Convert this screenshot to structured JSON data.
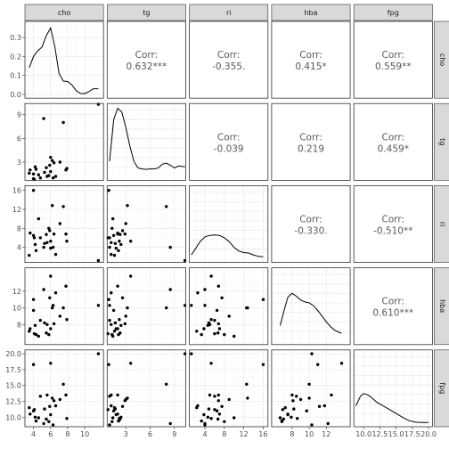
{
  "chart_data": {
    "type": "scatter-matrix",
    "variables": [
      "cho",
      "tg",
      "ri",
      "hba",
      "fpg"
    ],
    "grid": true,
    "axes": {
      "cho": {
        "range": [
          3,
          12.2
        ],
        "ticks": [
          4,
          6,
          8,
          10
        ],
        "tick_labels": [
          "4",
          "6",
          "8",
          "10"
        ]
      },
      "tg": {
        "range": [
          0.7,
          10.4
        ],
        "ticks": [
          3,
          6,
          9
        ],
        "tick_labels": [
          "3",
          "6",
          "9"
        ]
      },
      "ri": {
        "range": [
          0.8,
          17
        ],
        "ticks": [
          4,
          8,
          12,
          16
        ],
        "tick_labels": [
          "4",
          "8",
          "12",
          "16"
        ]
      },
      "hba": {
        "range": [
          5.6,
          14.8
        ],
        "ticks": [
          8,
          10,
          12
        ],
        "tick_labels": [
          "8",
          "10",
          "12"
        ]
      },
      "fpg": {
        "range": [
          8.5,
          20.6
        ],
        "ticks": [
          10,
          12.5,
          15,
          17.5,
          20
        ],
        "tick_labels": [
          "10.0",
          "12.5",
          "15.0",
          "17.5",
          "20.0"
        ]
      }
    },
    "density_axis": {
      "range": [
        -0.02,
        0.385
      ],
      "ticks": [
        0,
        0.1,
        0.2,
        0.3
      ],
      "tick_labels": [
        "0.0",
        "0.1",
        "0.2",
        "0.3"
      ]
    },
    "correlations": [
      {
        "pair": [
          "cho",
          "tg"
        ],
        "label": "Corr:",
        "value": "0.632***"
      },
      {
        "pair": [
          "cho",
          "ri"
        ],
        "label": "Corr:",
        "value": "-0.355."
      },
      {
        "pair": [
          "cho",
          "hba"
        ],
        "label": "Corr:",
        "value": "0.415*"
      },
      {
        "pair": [
          "cho",
          "fpg"
        ],
        "label": "Corr:",
        "value": "0.559**"
      },
      {
        "pair": [
          "tg",
          "ri"
        ],
        "label": "Corr:",
        "value": "-0.039"
      },
      {
        "pair": [
          "tg",
          "hba"
        ],
        "label": "Corr:",
        "value": "0.219"
      },
      {
        "pair": [
          "tg",
          "fpg"
        ],
        "label": "Corr:",
        "value": "0.459*"
      },
      {
        "pair": [
          "ri",
          "hba"
        ],
        "label": "Corr:",
        "value": "-0.330."
      },
      {
        "pair": [
          "ri",
          "fpg"
        ],
        "label": "Corr:",
        "value": "-0.510**"
      },
      {
        "pair": [
          "hba",
          "fpg"
        ],
        "label": "Corr:",
        "value": "0.610***"
      }
    ],
    "observations": [
      {
        "cho": 11.6,
        "tg": 10.3,
        "ri": 1.2,
        "hba": 10.3,
        "fpg": 20.0
      },
      {
        "cho": 4.0,
        "tg": 0.9,
        "ri": 16.0,
        "hba": 11.0,
        "fpg": 18.3
      },
      {
        "cho": 5.2,
        "tg": 8.5,
        "ri": 4.0,
        "hba": 12.2,
        "fpg": 9.0
      },
      {
        "cho": 6.0,
        "tg": 3.6,
        "ri": 5.3,
        "hba": 13.8,
        "fpg": 18.5
      },
      {
        "cho": 7.5,
        "tg": 8.0,
        "ri": 12.6,
        "hba": 10.0,
        "fpg": 15.2
      },
      {
        "cho": 5.6,
        "tg": 1.2,
        "ri": 5.0,
        "hba": 8.0,
        "fpg": 13.5
      },
      {
        "cho": 7.1,
        "tg": 3.0,
        "ri": 9.0,
        "hba": 9.0,
        "fpg": 12.8
      },
      {
        "cho": 3.6,
        "tg": 2.0,
        "ri": 7.0,
        "hba": 7.5,
        "fpg": 10.5
      },
      {
        "cho": 6.2,
        "tg": 3.2,
        "ri": 12.8,
        "hba": 10.0,
        "fpg": 13.0
      },
      {
        "cho": 4.0,
        "tg": 1.5,
        "ri": 6.5,
        "hba": 9.7,
        "fpg": 11.0
      },
      {
        "cho": 4.2,
        "tg": 2.4,
        "ri": 4.6,
        "hba": 7.9,
        "fpg": 10.0
      },
      {
        "cho": 5.5,
        "tg": 2.3,
        "ri": 6.7,
        "hba": 7.0,
        "fpg": 9.7
      },
      {
        "cho": 5.8,
        "tg": 1.3,
        "ri": 8.0,
        "hba": 6.8,
        "fpg": 9.3
      },
      {
        "cho": 6.0,
        "tg": 1.8,
        "ri": 3.8,
        "hba": 7.5,
        "fpg": 10.4
      },
      {
        "cho": 4.8,
        "tg": 1.0,
        "ri": 6.0,
        "hba": 8.5,
        "fpg": 13.3
      },
      {
        "cho": 5.3,
        "tg": 1.7,
        "ri": 4.8,
        "hba": 8.2,
        "fpg": 11.3
      },
      {
        "cho": 6.6,
        "tg": 1.2,
        "ri": 2.5,
        "hba": 11.8,
        "fpg": 11.8
      },
      {
        "cho": 4.3,
        "tg": 2.1,
        "ri": 3.3,
        "hba": 6.8,
        "fpg": 9.4
      },
      {
        "cho": 5.9,
        "tg": 2.6,
        "ri": 7.5,
        "hba": 11.2,
        "fpg": 11.7
      },
      {
        "cho": 7.9,
        "tg": 2.2,
        "ri": 5.3,
        "hba": 8.6,
        "fpg": 9.8
      },
      {
        "cho": 3.5,
        "tg": 1.6,
        "ri": 2.3,
        "hba": 7.2,
        "fpg": 11.5
      },
      {
        "cho": 6.3,
        "tg": 1.0,
        "ri": 4.0,
        "hba": 10.3,
        "fpg": 8.8
      },
      {
        "cho": 4.6,
        "tg": 1.4,
        "ri": 10.0,
        "hba": 6.6,
        "fpg": 9.9
      },
      {
        "cho": 6.4,
        "tg": 2.9,
        "ri": 6.8,
        "hba": 8.1,
        "fpg": 12.6
      },
      {
        "cho": 4.1,
        "tg": 0.8,
        "ri": 6.0,
        "hba": 6.9,
        "fpg": 11.2
      },
      {
        "cho": 7.8,
        "tg": 2.0,
        "ri": 6.8,
        "hba": 12.6,
        "fpg": 13.5
      }
    ],
    "densities": {
      "cho": {
        "x": [
          3.5,
          4.0,
          4.5,
          5.0,
          5.5,
          6.0,
          6.5,
          7.0,
          7.5,
          8.0,
          8.5,
          9.0,
          9.5,
          10.0,
          10.5,
          11.0,
          11.6
        ],
        "y": [
          0.14,
          0.2,
          0.23,
          0.25,
          0.31,
          0.35,
          0.25,
          0.11,
          0.07,
          0.068,
          0.05,
          0.02,
          0.005,
          0.004,
          0.015,
          0.03,
          0.03
        ]
      },
      "tg": {
        "x": [
          1.0,
          1.5,
          2.0,
          2.5,
          3.0,
          3.5,
          4.0,
          4.5,
          5.0,
          5.5,
          6.0,
          6.5,
          7.0,
          7.5,
          8.0,
          8.5,
          9.0,
          9.5,
          10.3
        ],
        "y": [
          0.08,
          0.3,
          0.36,
          0.34,
          0.26,
          0.16,
          0.08,
          0.045,
          0.04,
          0.038,
          0.04,
          0.04,
          0.045,
          0.065,
          0.07,
          0.06,
          0.045,
          0.055,
          0.052
        ]
      },
      "ri": {
        "x": [
          1.2,
          2.0,
          3.0,
          4.0,
          5.0,
          6.0,
          7.0,
          8.0,
          9.0,
          10.0,
          11.0,
          12.0,
          13.0,
          14.0,
          15.0,
          16.0
        ],
        "y": [
          0.02,
          0.05,
          0.09,
          0.115,
          0.123,
          0.125,
          0.123,
          0.11,
          0.09,
          0.06,
          0.04,
          0.032,
          0.03,
          0.02,
          0.012,
          0.01
        ]
      },
      "hba": {
        "x": [
          6.6,
          7.0,
          7.5,
          8.0,
          8.5,
          9.0,
          9.5,
          10.0,
          10.5,
          11.0,
          11.5,
          12.0,
          12.5,
          13.0,
          13.5,
          13.8
        ],
        "y": [
          0.08,
          0.15,
          0.23,
          0.25,
          0.235,
          0.215,
          0.205,
          0.2,
          0.185,
          0.16,
          0.13,
          0.1,
          0.075,
          0.055,
          0.045,
          0.04
        ]
      },
      "fpg": {
        "x": [
          8.8,
          9.5,
          10.0,
          10.5,
          11.0,
          11.5,
          12.0,
          13.0,
          14.0,
          15.0,
          16.0,
          17.0,
          18.0,
          19.0,
          20.0
        ],
        "y": [
          0.09,
          0.14,
          0.155,
          0.15,
          0.14,
          0.125,
          0.11,
          0.09,
          0.07,
          0.05,
          0.03,
          0.012,
          0.004,
          0.002,
          0.002
        ]
      }
    }
  }
}
